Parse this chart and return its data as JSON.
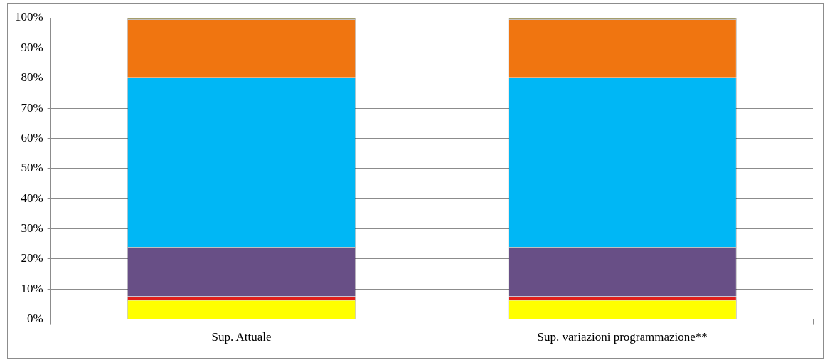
{
  "chart_data": {
    "type": "bar",
    "stacked": true,
    "categories": [
      "Sup. Attuale",
      "Sup. variazioni programmazione**"
    ],
    "series": [
      {
        "color": "#ffff00",
        "values": [
          6.4,
          6.4
        ]
      },
      {
        "color": "#e0201c",
        "values": [
          1.2,
          1.2
        ]
      },
      {
        "color": "#684f86",
        "values": [
          16.4,
          16.4
        ]
      },
      {
        "color": "#00b7f5",
        "values": [
          56.2,
          56.2
        ]
      },
      {
        "color": "#f07510",
        "values": [
          19.3,
          19.3
        ]
      },
      {
        "color": "#a59d6b",
        "values": [
          0.5,
          0.5
        ]
      }
    ],
    "ylim": [
      0,
      100
    ],
    "yticks": [
      {
        "value": 0,
        "label": "0%"
      },
      {
        "value": 10,
        "label": "10%"
      },
      {
        "value": 20,
        "label": "20%"
      },
      {
        "value": 30,
        "label": "30%"
      },
      {
        "value": 40,
        "label": "40%"
      },
      {
        "value": 50,
        "label": "50%"
      },
      {
        "value": 60,
        "label": "60%"
      },
      {
        "value": 70,
        "label": "70%"
      },
      {
        "value": 80,
        "label": "80%"
      },
      {
        "value": 90,
        "label": "90%"
      },
      {
        "value": 100,
        "label": "100%"
      }
    ],
    "grid": "y",
    "legend": false
  }
}
